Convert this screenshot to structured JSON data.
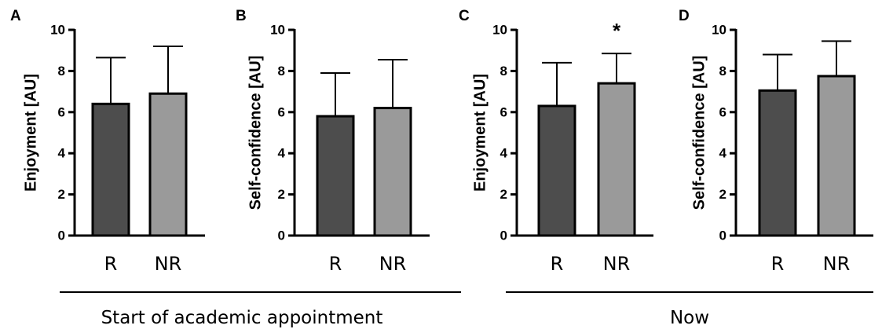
{
  "chart_data": [
    {
      "panel": "A",
      "type": "bar",
      "categories": [
        "R",
        "NR"
      ],
      "values": [
        6.4,
        6.9
      ],
      "error_upper": [
        8.65,
        9.2
      ],
      "ylabel": "Enjoyment [AU]",
      "ylim": [
        0,
        10
      ],
      "yticks": [
        0,
        2,
        4,
        6,
        8,
        10
      ],
      "colors": [
        "#4d4d4d",
        "#9a9a9a"
      ],
      "significance": [
        "",
        ""
      ],
      "grid": false
    },
    {
      "panel": "B",
      "type": "bar",
      "categories": [
        "R",
        "NR"
      ],
      "values": [
        5.8,
        6.2
      ],
      "error_upper": [
        7.9,
        8.55
      ],
      "ylabel": "Self-confidence [AU]",
      "ylim": [
        0,
        10
      ],
      "yticks": [
        0,
        2,
        4,
        6,
        8,
        10
      ],
      "colors": [
        "#4d4d4d",
        "#9a9a9a"
      ],
      "significance": [
        "",
        ""
      ],
      "grid": false
    },
    {
      "panel": "C",
      "type": "bar",
      "categories": [
        "R",
        "NR"
      ],
      "values": [
        6.3,
        7.4
      ],
      "error_upper": [
        8.4,
        8.85
      ],
      "ylabel": "Enjoyment [AU]",
      "ylim": [
        0,
        10
      ],
      "yticks": [
        0,
        2,
        4,
        6,
        8,
        10
      ],
      "colors": [
        "#4d4d4d",
        "#9a9a9a"
      ],
      "significance": [
        "",
        "*"
      ],
      "grid": false
    },
    {
      "panel": "D",
      "type": "bar",
      "categories": [
        "R",
        "NR"
      ],
      "values": [
        7.05,
        7.75
      ],
      "error_upper": [
        8.8,
        9.45
      ],
      "ylabel": "Self-confidence [AU]",
      "ylim": [
        0,
        10
      ],
      "yticks": [
        0,
        2,
        4,
        6,
        8,
        10
      ],
      "colors": [
        "#4d4d4d",
        "#9a9a9a"
      ],
      "significance": [
        "",
        ""
      ],
      "grid": false
    }
  ],
  "groups": [
    {
      "label": "Start of academic appointment",
      "panels": [
        "A",
        "B"
      ]
    },
    {
      "label": "Now",
      "panels": [
        "C",
        "D"
      ]
    }
  ]
}
